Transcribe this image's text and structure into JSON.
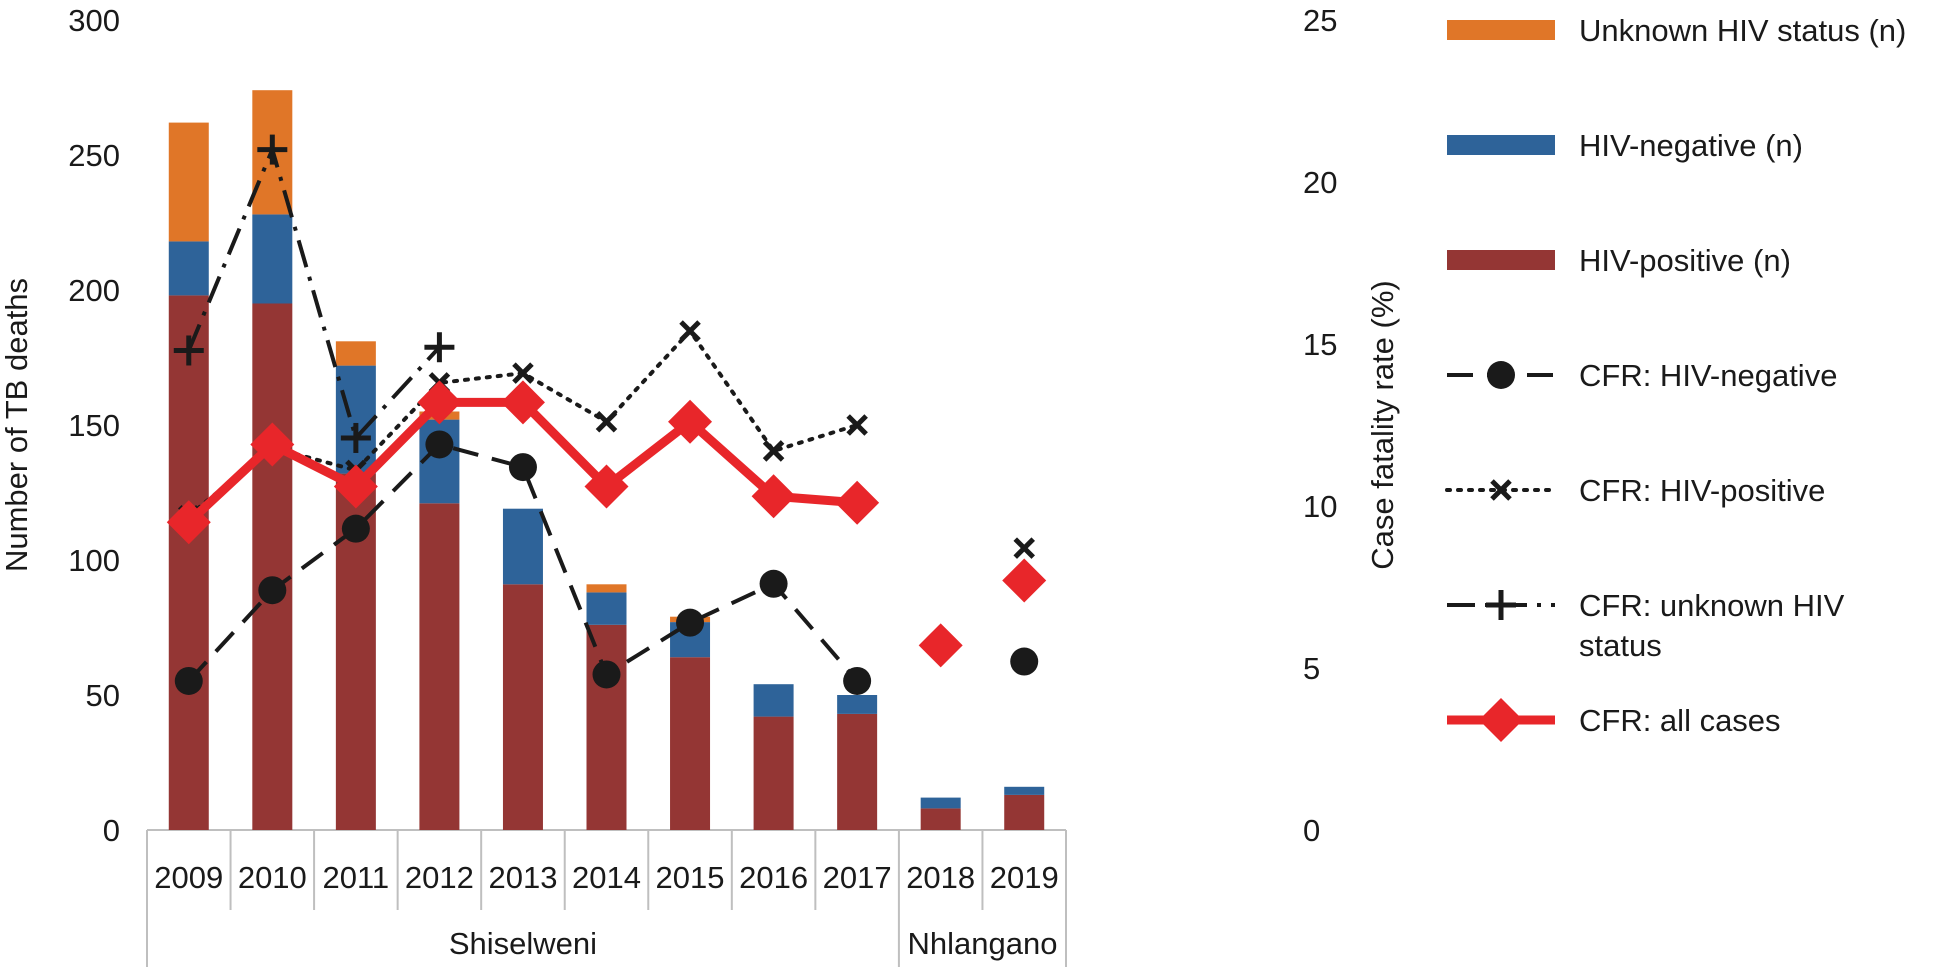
{
  "chart_data": {
    "type": "bar",
    "stacked": true,
    "categories": [
      "2009",
      "2010",
      "2011",
      "2012",
      "2013",
      "2014",
      "2015",
      "2016",
      "2017",
      "2018",
      "2019"
    ],
    "groups": [
      {
        "label": "Shiselweni",
        "categories": [
          "2009",
          "2010",
          "2011",
          "2012",
          "2013",
          "2014",
          "2015",
          "2016",
          "2017"
        ]
      },
      {
        "label": "Nhlangano",
        "categories": [
          "2018",
          "2019"
        ]
      }
    ],
    "ylabel": "Number of TB deaths",
    "y2label": "Case fatality rate (%)",
    "ylim": [
      0,
      300
    ],
    "yticks": [
      0,
      50,
      100,
      150,
      200,
      250,
      300
    ],
    "y2lim": [
      0,
      25
    ],
    "y2ticks": [
      0,
      5,
      10,
      15,
      20,
      25
    ],
    "bar_series": [
      {
        "name": "HIV-positive (n)",
        "color": "#943634",
        "values": [
          198,
          195,
          132,
          121,
          91,
          76,
          64,
          42,
          43,
          8,
          13
        ]
      },
      {
        "name": "HIV-negative (n)",
        "color": "#2e6399",
        "values": [
          20,
          33,
          40,
          31,
          28,
          12,
          13,
          12,
          7,
          4,
          3
        ]
      },
      {
        "name": "Unknown HIV status (n)",
        "color": "#e07628",
        "values": [
          44,
          46,
          9,
          3,
          0,
          3,
          2,
          0,
          0,
          0,
          0
        ]
      }
    ],
    "line_series": [
      {
        "name": "CFR: HIV-negative",
        "axis": "y2",
        "style": "dashed",
        "marker": "circle",
        "color": "#1a1a1a",
        "values": [
          4.6,
          7.4,
          9.3,
          11.9,
          11.2,
          4.8,
          6.4,
          7.6,
          4.6,
          null,
          5.2
        ],
        "connected_upto": "2017"
      },
      {
        "name": "CFR: HIV-positive",
        "axis": "y2",
        "style": "dotted",
        "marker": "x",
        "color": "#1a1a1a",
        "values": [
          9.7,
          11.8,
          11.1,
          13.8,
          14.1,
          12.6,
          15.4,
          11.7,
          12.5,
          null,
          8.7
        ],
        "connected_upto": "2017"
      },
      {
        "name": "CFR: unknown HIV status",
        "axis": "y2",
        "style": "dashdot",
        "marker": "plus",
        "color": "#1a1a1a",
        "values": [
          14.8,
          21.0,
          12.1,
          14.9,
          null,
          null,
          null,
          null,
          null,
          null,
          null
        ],
        "connected_upto": "2012"
      },
      {
        "name": "CFR: all cases",
        "axis": "y2",
        "style": "solid",
        "marker": "diamond",
        "color": "#e8262a",
        "values": [
          9.5,
          11.9,
          10.6,
          13.2,
          13.2,
          10.6,
          12.6,
          10.3,
          10.1,
          5.7,
          7.7
        ],
        "connected_upto": "2017"
      }
    ],
    "legend": {
      "position": "right",
      "items": [
        {
          "label": "Unknown HIV status (n)",
          "kind": "bar",
          "color": "#e07628"
        },
        {
          "label": "HIV-negative (n)",
          "kind": "bar",
          "color": "#2e6399"
        },
        {
          "label": "HIV-positive (n)",
          "kind": "bar",
          "color": "#943634"
        },
        {
          "label": "CFR: HIV-negative",
          "kind": "line",
          "style": "dashed",
          "marker": "circle",
          "color": "#1a1a1a"
        },
        {
          "label": "CFR: HIV-positive",
          "kind": "line",
          "style": "dotted",
          "marker": "x",
          "color": "#1a1a1a"
        },
        {
          "label": [
            "CFR: unknown HIV",
            "status"
          ],
          "kind": "line",
          "style": "dashdot",
          "marker": "plus",
          "color": "#1a1a1a"
        },
        {
          "label": "CFR: all cases",
          "kind": "line",
          "style": "solid",
          "marker": "diamond",
          "color": "#e8262a"
        }
      ]
    },
    "grid": false
  }
}
